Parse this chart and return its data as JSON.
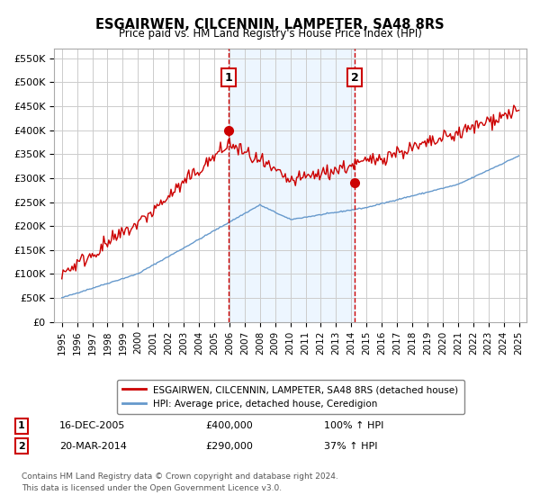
{
  "title": "ESGAIRWEN, CILCENNIN, LAMPETER, SA48 8RS",
  "subtitle": "Price paid vs. HM Land Registry's House Price Index (HPI)",
  "legend_line1": "ESGAIRWEN, CILCENNIN, LAMPETER, SA48 8RS (detached house)",
  "legend_line2": "HPI: Average price, detached house, Ceredigion",
  "annotation1_label": "1",
  "annotation1_date": "16-DEC-2005",
  "annotation1_price": 400000,
  "annotation1_text": "16-DEC-2005        £400,000        100% ↑ HPI",
  "annotation2_label": "2",
  "annotation2_date": "20-MAR-2014",
  "annotation2_price": 290000,
  "annotation2_text": "20-MAR-2014        £290,000          37% ↑ HPI",
  "footer1": "Contains HM Land Registry data © Crown copyright and database right 2024.",
  "footer2": "This data is licensed under the Open Government Licence v3.0.",
  "ylim": [
    0,
    570000
  ],
  "yticks": [
    0,
    50000,
    100000,
    150000,
    200000,
    250000,
    300000,
    350000,
    400000,
    450000,
    500000,
    550000
  ],
  "background_color": "#ffffff",
  "plot_bg_color": "#ffffff",
  "grid_color": "#cccccc",
  "red_line_color": "#cc0000",
  "blue_line_color": "#6699cc",
  "vline_color": "#cc0000",
  "shade_color": "#ddeeff",
  "annotation_box_color": "#cc0000"
}
